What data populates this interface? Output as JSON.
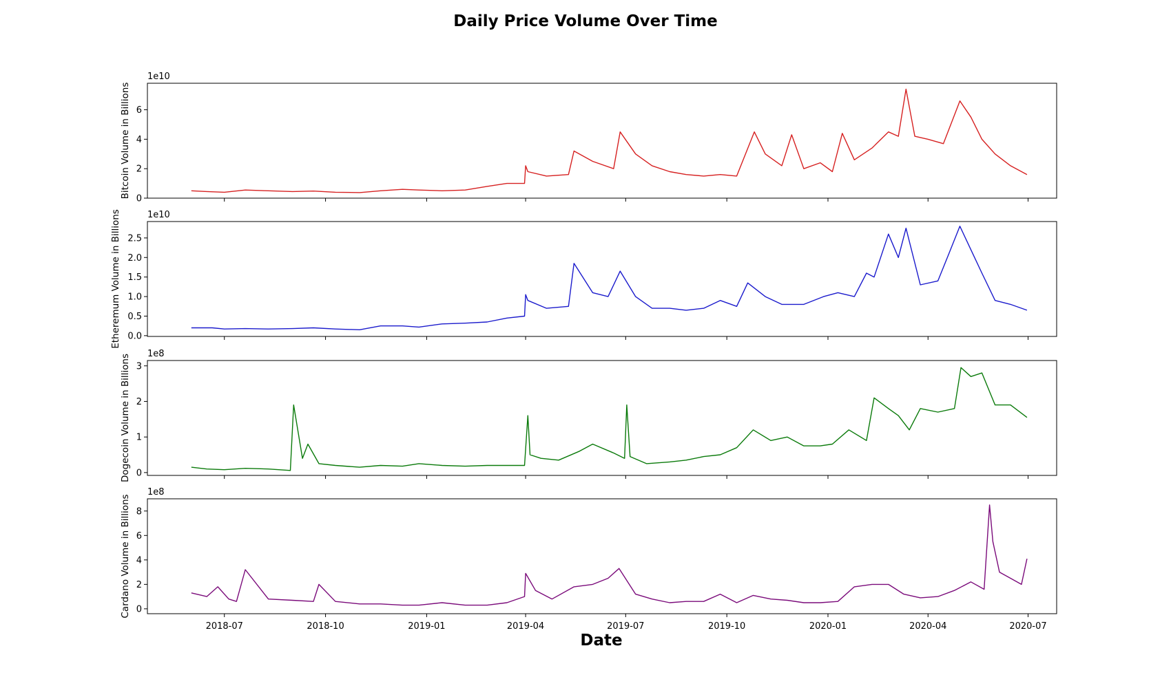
{
  "chart_data": {
    "type": "line",
    "title": "Daily Price Volume Over Time",
    "xlabel": "Date",
    "x_range": [
      "2018-04-22",
      "2020-07-27"
    ],
    "x_ticks": [
      "2018-07",
      "2018-10",
      "2019-01",
      "2019-04",
      "2019-07",
      "2019-10",
      "2020-01",
      "2020-04",
      "2020-07"
    ],
    "x_tick_dates": [
      "2018-07-01",
      "2018-10-01",
      "2019-01-01",
      "2019-04-01",
      "2019-07-01",
      "2019-10-01",
      "2020-01-01",
      "2020-04-01",
      "2020-07-01"
    ],
    "grid": false,
    "legend": "none",
    "panels": [
      {
        "ylabel": "Bitcoin Volume in Billions",
        "offset_text": "1e10",
        "multiplier": 10000000000,
        "color": "#d62020",
        "ylim": [
          0,
          7.8
        ],
        "yticks": [
          0,
          2,
          4,
          6
        ],
        "ytick_labels": [
          "0",
          "2",
          "4",
          "6"
        ],
        "x": [
          "2018-06-01",
          "2018-06-15",
          "2018-07-01",
          "2018-07-20",
          "2018-08-10",
          "2018-09-01",
          "2018-09-20",
          "2018-10-10",
          "2018-11-01",
          "2018-11-20",
          "2018-12-10",
          "2018-12-25",
          "2019-01-15",
          "2019-02-05",
          "2019-02-25",
          "2019-03-15",
          "2019-03-31",
          "2019-04-01",
          "2019-04-03",
          "2019-04-20",
          "2019-05-10",
          "2019-05-15",
          "2019-06-01",
          "2019-06-20",
          "2019-06-26",
          "2019-07-10",
          "2019-07-25",
          "2019-08-10",
          "2019-08-25",
          "2019-09-10",
          "2019-09-25",
          "2019-10-10",
          "2019-10-26",
          "2019-11-05",
          "2019-11-20",
          "2019-11-29",
          "2019-12-10",
          "2019-12-25",
          "2020-01-05",
          "2020-01-14",
          "2020-01-25",
          "2020-02-10",
          "2020-02-25",
          "2020-03-05",
          "2020-03-12",
          "2020-03-20",
          "2020-04-01",
          "2020-04-15",
          "2020-04-30",
          "2020-05-10",
          "2020-05-20",
          "2020-06-01",
          "2020-06-15",
          "2020-06-30"
        ],
        "values": [
          0.5,
          0.45,
          0.4,
          0.55,
          0.5,
          0.45,
          0.48,
          0.4,
          0.38,
          0.5,
          0.6,
          0.55,
          0.5,
          0.55,
          0.8,
          1.0,
          1.0,
          2.2,
          1.8,
          1.5,
          1.6,
          3.2,
          2.5,
          2.0,
          4.5,
          3.0,
          2.2,
          1.8,
          1.6,
          1.5,
          1.6,
          1.5,
          4.5,
          3.0,
          2.2,
          4.3,
          2.0,
          2.4,
          1.8,
          4.4,
          2.6,
          3.4,
          4.5,
          4.2,
          7.4,
          4.2,
          4.0,
          3.7,
          6.6,
          5.5,
          4.0,
          3.0,
          2.2,
          1.6
        ]
      },
      {
        "ylabel": "Etheremum Volume in Billions",
        "offset_text": "1e10",
        "multiplier": 10000000000,
        "color": "#1a1acc",
        "ylim": [
          -0.02,
          2.92
        ],
        "yticks": [
          0,
          0.5,
          1.0,
          1.5,
          2.0,
          2.5
        ],
        "ytick_labels": [
          "0.0",
          "0.5",
          "1.0",
          "1.5",
          "2.0",
          "2.5"
        ],
        "x": [
          "2018-06-01",
          "2018-06-20",
          "2018-07-01",
          "2018-07-20",
          "2018-08-10",
          "2018-09-01",
          "2018-09-20",
          "2018-10-10",
          "2018-11-01",
          "2018-11-20",
          "2018-12-10",
          "2018-12-25",
          "2019-01-15",
          "2019-02-05",
          "2019-02-25",
          "2019-03-15",
          "2019-03-31",
          "2019-04-01",
          "2019-04-03",
          "2019-04-20",
          "2019-05-10",
          "2019-05-15",
          "2019-06-01",
          "2019-06-15",
          "2019-06-26",
          "2019-07-10",
          "2019-07-25",
          "2019-08-10",
          "2019-08-25",
          "2019-09-10",
          "2019-09-25",
          "2019-10-10",
          "2019-10-20",
          "2019-11-05",
          "2019-11-20",
          "2019-12-10",
          "2019-12-28",
          "2020-01-10",
          "2020-01-25",
          "2020-02-05",
          "2020-02-12",
          "2020-02-25",
          "2020-03-05",
          "2020-03-12",
          "2020-03-25",
          "2020-04-10",
          "2020-04-20",
          "2020-04-30",
          "2020-05-10",
          "2020-05-20",
          "2020-06-01",
          "2020-06-15",
          "2020-06-30"
        ],
        "values": [
          0.2,
          0.2,
          0.17,
          0.18,
          0.17,
          0.18,
          0.2,
          0.17,
          0.15,
          0.25,
          0.25,
          0.22,
          0.3,
          0.32,
          0.35,
          0.45,
          0.5,
          1.05,
          0.9,
          0.7,
          0.75,
          1.85,
          1.1,
          1.0,
          1.65,
          1.0,
          0.7,
          0.7,
          0.65,
          0.7,
          0.9,
          0.75,
          1.35,
          1.0,
          0.8,
          0.8,
          1.0,
          1.1,
          1.0,
          1.6,
          1.5,
          2.6,
          2.0,
          2.75,
          1.3,
          1.4,
          2.1,
          2.8,
          2.2,
          1.6,
          0.9,
          0.8,
          0.65
        ]
      },
      {
        "ylabel": "Dogecoin Volume in Billions",
        "offset_text": "1e8",
        "multiplier": 100000000,
        "color": "#0a7a0a",
        "ylim": [
          -0.08,
          3.15
        ],
        "yticks": [
          0,
          1,
          2,
          3
        ],
        "ytick_labels": [
          "0",
          "1",
          "2",
          "3"
        ],
        "x": [
          "2018-06-01",
          "2018-06-15",
          "2018-07-01",
          "2018-07-20",
          "2018-08-10",
          "2018-08-30",
          "2018-09-02",
          "2018-09-10",
          "2018-09-15",
          "2018-09-25",
          "2018-10-10",
          "2018-11-01",
          "2018-11-20",
          "2018-12-10",
          "2018-12-25",
          "2019-01-15",
          "2019-02-05",
          "2019-02-25",
          "2019-03-15",
          "2019-03-31",
          "2019-04-03",
          "2019-04-05",
          "2019-04-15",
          "2019-05-01",
          "2019-05-20",
          "2019-06-01",
          "2019-06-20",
          "2019-06-30",
          "2019-07-02",
          "2019-07-05",
          "2019-07-20",
          "2019-08-10",
          "2019-08-25",
          "2019-09-10",
          "2019-09-25",
          "2019-10-10",
          "2019-10-25",
          "2019-11-10",
          "2019-11-25",
          "2019-12-10",
          "2019-12-25",
          "2020-01-05",
          "2020-01-20",
          "2020-02-05",
          "2020-02-12",
          "2020-02-25",
          "2020-03-05",
          "2020-03-15",
          "2020-03-25",
          "2020-04-10",
          "2020-04-25",
          "2020-05-01",
          "2020-05-10",
          "2020-05-20",
          "2020-06-01",
          "2020-06-15",
          "2020-06-30"
        ],
        "values": [
          0.15,
          0.1,
          0.08,
          0.12,
          0.1,
          0.06,
          1.9,
          0.4,
          0.8,
          0.25,
          0.2,
          0.15,
          0.2,
          0.18,
          0.25,
          0.2,
          0.18,
          0.2,
          0.2,
          0.2,
          1.6,
          0.5,
          0.4,
          0.35,
          0.6,
          0.8,
          0.55,
          0.4,
          1.9,
          0.45,
          0.25,
          0.3,
          0.35,
          0.45,
          0.5,
          0.7,
          1.2,
          0.9,
          1.0,
          0.75,
          0.75,
          0.8,
          1.2,
          0.9,
          2.1,
          1.8,
          1.6,
          1.2,
          1.8,
          1.7,
          1.8,
          2.95,
          2.7,
          2.8,
          1.9,
          1.9,
          1.55
        ]
      },
      {
        "ylabel": "Cardano Volume in Billions",
        "offset_text": "1e8",
        "multiplier": 100000000,
        "color": "#7a0a7a",
        "ylim": [
          -0.4,
          9.0
        ],
        "yticks": [
          0,
          2,
          4,
          6,
          8
        ],
        "ytick_labels": [
          "0",
          "2",
          "4",
          "6",
          "8"
        ],
        "x": [
          "2018-06-01",
          "2018-06-15",
          "2018-06-25",
          "2018-07-05",
          "2018-07-12",
          "2018-07-20",
          "2018-08-10",
          "2018-09-01",
          "2018-09-20",
          "2018-09-25",
          "2018-10-10",
          "2018-11-01",
          "2018-11-20",
          "2018-12-10",
          "2018-12-25",
          "2019-01-15",
          "2019-02-05",
          "2019-02-25",
          "2019-03-15",
          "2019-03-31",
          "2019-04-01",
          "2019-04-10",
          "2019-04-25",
          "2019-05-15",
          "2019-06-01",
          "2019-06-15",
          "2019-06-25",
          "2019-07-10",
          "2019-07-25",
          "2019-08-10",
          "2019-08-25",
          "2019-09-10",
          "2019-09-25",
          "2019-10-10",
          "2019-10-25",
          "2019-11-10",
          "2019-11-25",
          "2019-12-10",
          "2019-12-25",
          "2020-01-10",
          "2020-01-25",
          "2020-02-10",
          "2020-02-25",
          "2020-03-10",
          "2020-03-25",
          "2020-04-10",
          "2020-04-25",
          "2020-05-10",
          "2020-05-22",
          "2020-05-27",
          "2020-05-30",
          "2020-06-05",
          "2020-06-15",
          "2020-06-25",
          "2020-06-30"
        ],
        "values": [
          1.3,
          1.0,
          1.8,
          0.8,
          0.6,
          3.2,
          0.8,
          0.7,
          0.6,
          2.0,
          0.6,
          0.4,
          0.4,
          0.3,
          0.3,
          0.5,
          0.3,
          0.3,
          0.5,
          1.0,
          2.9,
          1.5,
          0.8,
          1.8,
          2.0,
          2.5,
          3.3,
          1.2,
          0.8,
          0.5,
          0.6,
          0.6,
          1.2,
          0.5,
          1.1,
          0.8,
          0.7,
          0.5,
          0.5,
          0.6,
          1.8,
          2.0,
          2.0,
          1.2,
          0.9,
          1.0,
          1.5,
          2.2,
          1.6,
          8.5,
          5.5,
          3.0,
          2.5,
          2.0,
          4.1
        ]
      }
    ]
  }
}
